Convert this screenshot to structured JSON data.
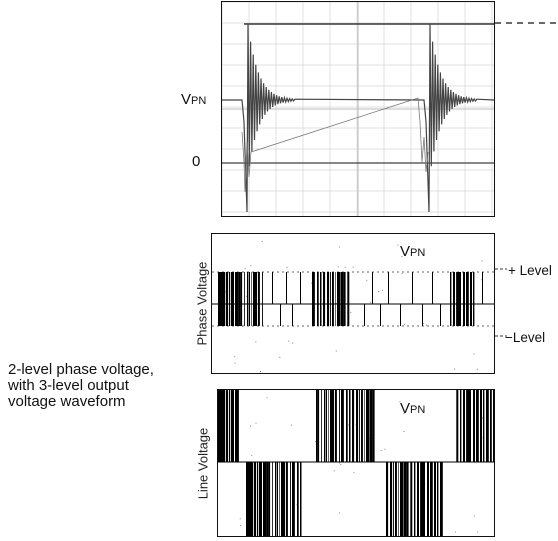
{
  "labels": {
    "vpn_main": "V",
    "vpn_sub": "PN",
    "zero": "0",
    "plus_level": "+ Level",
    "minus_level": "−Level",
    "phase_voltage": "Phase Voltage",
    "line_voltage": "Line Voltage"
  },
  "caption": {
    "line1": "2-level phase voltage,",
    "line2": "with 3-level output",
    "line3": "voltage waveform"
  },
  "colors": {
    "trace": "#333333",
    "grid": "#c8c8c8",
    "ink": "#000000"
  }
}
